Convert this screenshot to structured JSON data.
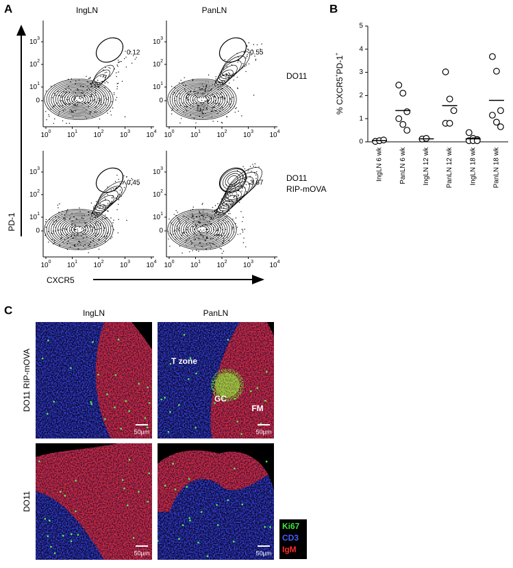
{
  "panel_a": {
    "label": "A",
    "columns": [
      "IngLN",
      "PanLN"
    ],
    "rows": [
      [
        "DO11"
      ],
      [
        "DO11",
        "RIP-mOVA"
      ]
    ],
    "gates": [
      [
        0.12,
        0.55
      ],
      [
        0.45,
        3.67
      ]
    ],
    "x_label": "CXCR5",
    "y_label": "PD-1",
    "x_ticks": [
      {
        "base": "10",
        "exp": "0"
      },
      {
        "base": "10",
        "exp": "1"
      },
      {
        "base": "10",
        "exp": "2"
      },
      {
        "base": "10",
        "exp": "3"
      },
      {
        "base": "10",
        "exp": "4"
      }
    ],
    "y_ticks": [
      "0",
      {
        "base": "10",
        "exp": "1"
      },
      {
        "base": "10",
        "exp": "2"
      },
      {
        "base": "10",
        "exp": "3"
      }
    ]
  },
  "panel_b": {
    "label": "B"
  },
  "chart_data": {
    "type": "scatter",
    "categories": [
      "IngLN 6 wk",
      "PanLN 6 wk",
      "IngLN 12 wk",
      "PanLN 12 wk",
      "IngLN 18 wk",
      "PanLN 18 wk"
    ],
    "values": [
      [
        0.02,
        0.05,
        0.08
      ],
      [
        2.45,
        2.1,
        1.3,
        1.0,
        0.75,
        0.5
      ],
      [
        0.12,
        0.15
      ],
      [
        3.02,
        1.85,
        1.35,
        0.8,
        0.8
      ],
      [
        0.4,
        0.15,
        0.1,
        0.05,
        0.05,
        0.05
      ],
      [
        3.68,
        3.05,
        1.35,
        1.15,
        0.85,
        0.65
      ]
    ],
    "means": [
      0.05,
      1.35,
      0.13,
      1.56,
      0.13,
      1.79
    ],
    "ylim": [
      0,
      5
    ],
    "yticks": [
      0,
      1,
      2,
      3,
      4,
      5
    ],
    "y_label": [
      {
        "text": "% CXCR5"
      },
      {
        "text": "+",
        "sup": true
      },
      {
        "text": "PD-1"
      },
      {
        "text": "+",
        "sup": true
      }
    ]
  },
  "panel_c": {
    "label": "C",
    "columns": [
      "IngLN",
      "PanLN"
    ],
    "rows": [
      "DO11 RIP-mOVA",
      "DO11"
    ],
    "annotations": [
      "T zone",
      "GC",
      "FM"
    ],
    "scale_bar": "50µm",
    "legend": [
      {
        "text": "Ki67",
        "color": "#3ee83e"
      },
      {
        "text": "CD3",
        "color": "#4a5cff"
      },
      {
        "text": "IgM",
        "color": "#ff2a2a"
      }
    ]
  }
}
